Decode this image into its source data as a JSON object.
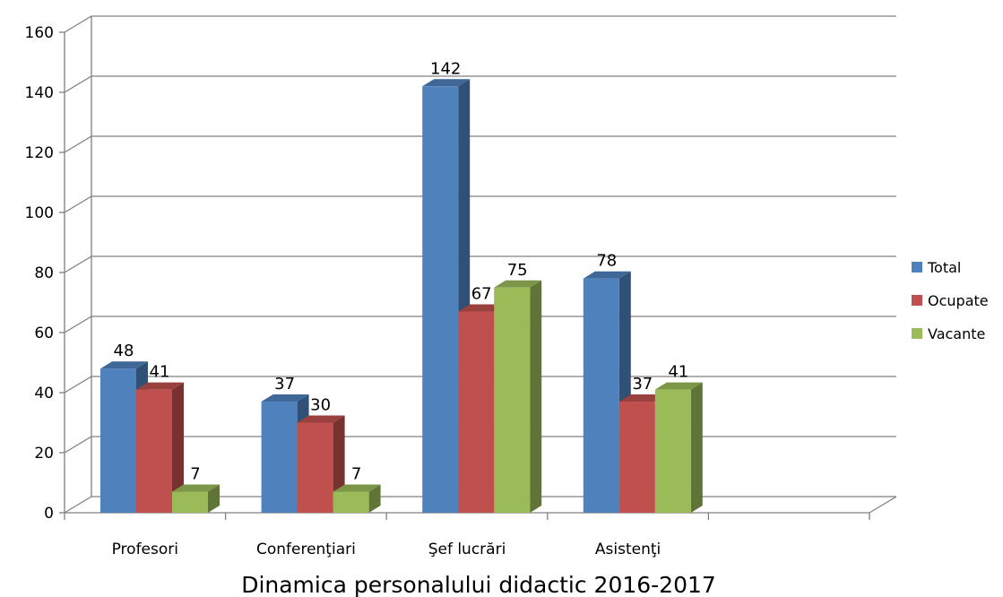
{
  "chart_data": {
    "type": "bar",
    "title": "Dinamica personalului didactic 2016-2017",
    "categories": [
      "Profesori",
      "Conferenţiari",
      "Şef lucrări",
      "Asistenţi"
    ],
    "series": [
      {
        "name": "Total",
        "values": [
          48,
          37,
          142,
          78
        ],
        "color": "#4F81BD"
      },
      {
        "name": "Ocupate",
        "values": [
          41,
          30,
          67,
          37
        ],
        "color": "#C0504D"
      },
      {
        "name": "Vacante",
        "values": [
          7,
          7,
          75,
          41
        ],
        "color": "#9BBB59"
      }
    ],
    "yticks": [
      "0",
      "20",
      "40",
      "60",
      "80",
      "100",
      "120",
      "140",
      "160"
    ],
    "ylim": [
      0,
      160
    ],
    "grid": true,
    "legend_position": "right",
    "style": "3d-clustered-column"
  }
}
